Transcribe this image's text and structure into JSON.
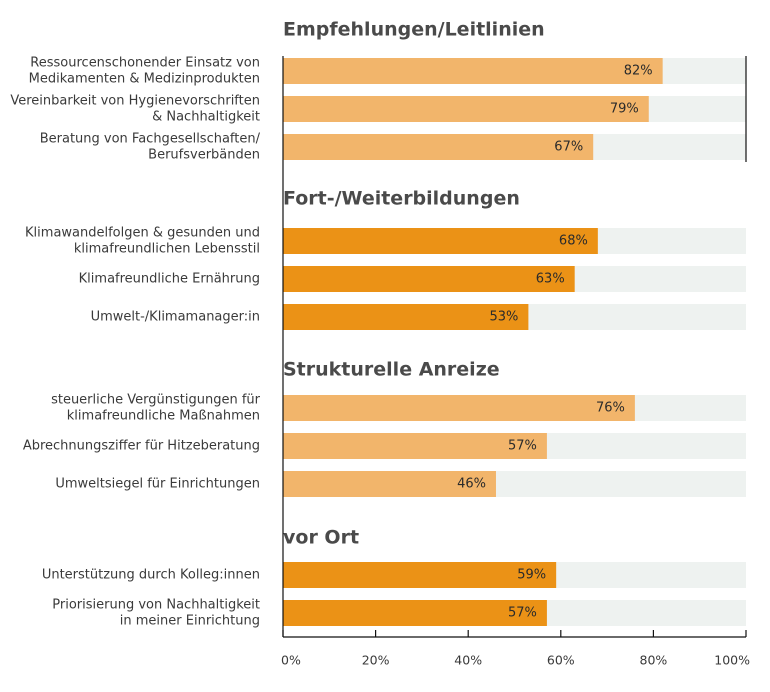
{
  "chart_data": {
    "type": "bar",
    "orientation": "horizontal",
    "xlim": [
      0,
      100
    ],
    "ticks": [
      "0%",
      "20%",
      "40%",
      "60%",
      "80%",
      "100%"
    ],
    "grid": false,
    "colors": {
      "light_bar": "#f2b56b",
      "dark_bar": "#eb9216",
      "track": "#eef2f0",
      "text": "#3a3a3a",
      "title": "#4a4a4a"
    },
    "groups": [
      {
        "title": "Empfehlungen/Leitlinien",
        "shade": "light",
        "items": [
          {
            "label": [
              "Ressourcenschonender Einsatz von",
              "Medikamenten & Medizinprodukten"
            ],
            "value": 82,
            "display": "82%"
          },
          {
            "label": [
              "Vereinbarkeit von Hygienevorschriften",
              "& Nachhaltigkeit"
            ],
            "value": 79,
            "display": "79%"
          },
          {
            "label": [
              "Beratung von Fachgesellschaften/",
              "Berufsverbänden"
            ],
            "value": 67,
            "display": "67%"
          }
        ]
      },
      {
        "title": "Fort-/Weiterbildungen",
        "shade": "dark",
        "items": [
          {
            "label": [
              "Klimawandelfolgen & gesunden und",
              "klimafreundlichen Lebensstil"
            ],
            "value": 68,
            "display": "68%"
          },
          {
            "label": [
              "Klimafreundliche Ernährung"
            ],
            "value": 63,
            "display": "63%"
          },
          {
            "label": [
              "Umwelt-/Klimamanager:in"
            ],
            "value": 53,
            "display": "53%"
          }
        ]
      },
      {
        "title": "Strukturelle Anreize",
        "shade": "light",
        "items": [
          {
            "label": [
              "steuerliche Vergünstigungen für",
              "klimafreundliche Maßnahmen"
            ],
            "value": 76,
            "display": "76%"
          },
          {
            "label": [
              "Abrechnungsziffer für Hitzeberatung"
            ],
            "value": 57,
            "display": "57%"
          },
          {
            "label": [
              "Umweltsiegel für Einrichtungen"
            ],
            "value": 46,
            "display": "46%"
          }
        ]
      },
      {
        "title": "vor Ort",
        "shade": "dark",
        "items": [
          {
            "label": [
              "Unterstützung durch Kolleg:innen"
            ],
            "value": 59,
            "display": "59%"
          },
          {
            "label": [
              "Priorisierung von Nachhaltigkeit",
              "in meiner Einrichtung"
            ],
            "value": 57,
            "display": "57%"
          }
        ]
      }
    ]
  }
}
